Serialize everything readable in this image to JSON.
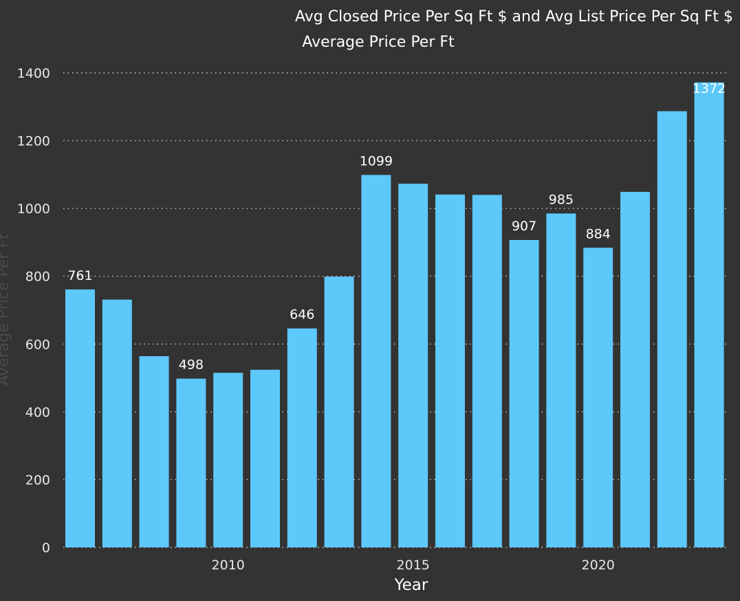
{
  "chart_data": {
    "type": "bar",
    "title": "Avg Closed Price Per Sq Ft $ and Avg List Price Per Sq Ft $",
    "subtitle": "Average Price Per Ft",
    "xlabel": "Year",
    "ylabel": "Average Price Per Ft",
    "categories": [
      2006,
      2007,
      2008,
      2009,
      2010,
      2011,
      2012,
      2013,
      2014,
      2015,
      2016,
      2017,
      2018,
      2019,
      2020,
      2021,
      2022,
      2023
    ],
    "values": [
      761,
      731,
      564,
      498,
      515,
      524,
      646,
      799,
      1099,
      1073,
      1041,
      1040,
      907,
      985,
      884,
      1049,
      1287,
      1372
    ],
    "data_labels": [
      {
        "year": 2006,
        "text": "761"
      },
      {
        "year": 2009,
        "text": "498"
      },
      {
        "year": 2012,
        "text": "646"
      },
      {
        "year": 2014,
        "text": "1099"
      },
      {
        "year": 2018,
        "text": "907"
      },
      {
        "year": 2019,
        "text": "985"
      },
      {
        "year": 2020,
        "text": "884"
      },
      {
        "year": 2023,
        "text": "1372"
      }
    ],
    "x_ticks": [
      2010,
      2015,
      2020
    ],
    "y_ticks": [
      0,
      200,
      400,
      600,
      800,
      1000,
      1200,
      1400
    ],
    "ylim": [
      0,
      1400
    ],
    "grid": true,
    "grid_style": "dotted",
    "legend": "none",
    "colors": {
      "background": "#333333",
      "bar": "#5DC8FA",
      "text": "#ffffff",
      "tick_text": "#e8e8e8",
      "ylabel": "#4a4a4a",
      "grid": "#cfcfcf"
    }
  }
}
